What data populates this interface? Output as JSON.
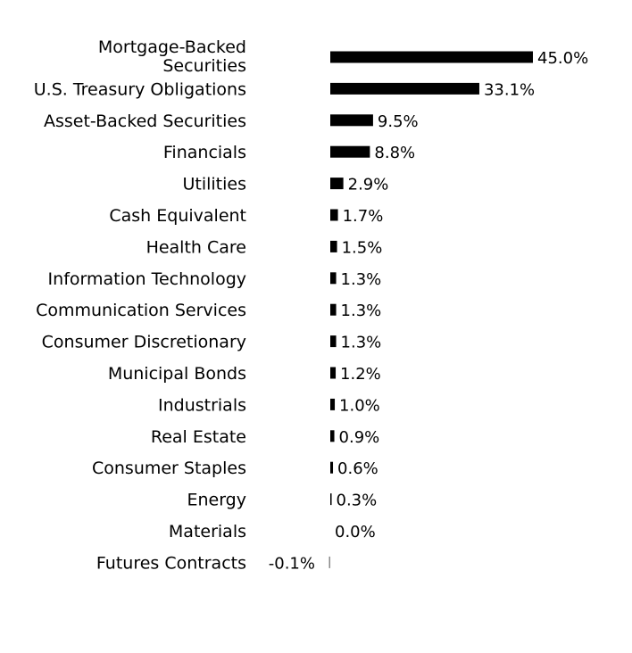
{
  "chart_data": {
    "type": "bar",
    "orientation": "horizontal",
    "categories": [
      "Mortgage-Backed Securities",
      "U.S. Treasury Obligations",
      "Asset-Backed Securities",
      "Financials",
      "Utilities",
      "Cash Equivalent",
      "Health Care",
      "Information Technology",
      "Communication Services",
      "Consumer Discretionary",
      "Municipal Bonds",
      "Industrials",
      "Real Estate",
      "Consumer Staples",
      "Energy",
      "Materials",
      "Futures Contracts"
    ],
    "values": [
      45.0,
      33.1,
      9.5,
      8.8,
      2.9,
      1.7,
      1.5,
      1.3,
      1.3,
      1.3,
      1.2,
      1.0,
      0.9,
      0.6,
      0.3,
      0.0,
      -0.1
    ],
    "value_labels": [
      "45.0%",
      "33.1%",
      "9.5%",
      "8.8%",
      "2.9%",
      "1.7%",
      "1.5%",
      "1.3%",
      "1.3%",
      "1.3%",
      "1.2%",
      "1.0%",
      "0.9%",
      "0.6%",
      "0.3%",
      "0.0%",
      "-0.1%"
    ],
    "title": "",
    "xlabel": "",
    "ylabel": "",
    "grid": false,
    "legend": "none",
    "bar_color": "#000000"
  }
}
